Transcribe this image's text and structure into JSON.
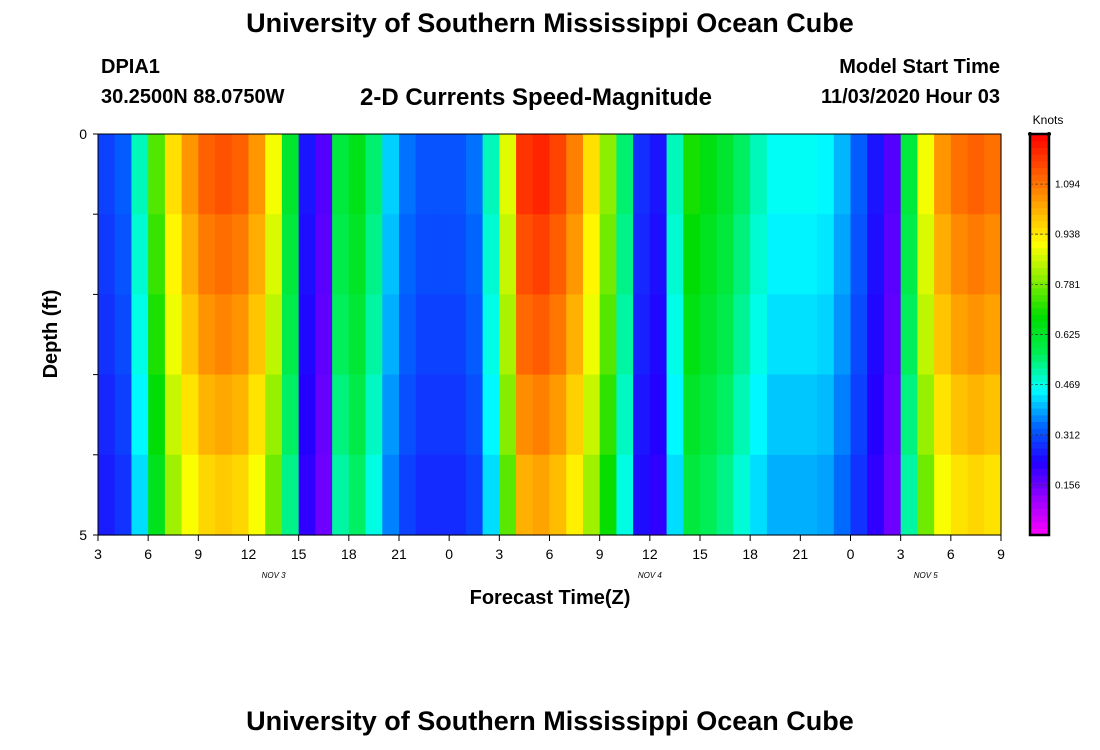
{
  "header": {
    "title": "University of Southern Mississippi Ocean Cube",
    "station_id": "DPIA1",
    "coords": "30.2500N 88.0750W",
    "chart_title": "2-D Currents Speed-Magnitude",
    "model_label": "Model Start Time",
    "model_time": "11/03/2020 Hour 03"
  },
  "footer": {
    "title": "University of Southern Mississippi Ocean Cube"
  },
  "colors": {
    "scale": [
      "#ff00ff",
      "#9900ff",
      "#2200ff",
      "#0066ff",
      "#00ffff",
      "#00ee55",
      "#00dd00",
      "#88ee00",
      "#ffff00",
      "#ffaa00",
      "#ff5500",
      "#ff0000"
    ]
  },
  "chart_data": {
    "type": "heatmap",
    "title": "2-D Currents Speed-Magnitude",
    "xlabel": "Forecast Time(Z)",
    "ylabel": "Depth (ft)",
    "ylim": [
      0,
      5
    ],
    "y_ticks": [
      "0",
      "5"
    ],
    "x_tick_labels": [
      "3",
      "6",
      "9",
      "12",
      "15",
      "18",
      "21",
      "0",
      "3",
      "6",
      "9",
      "12",
      "15",
      "18",
      "21",
      "0",
      "3",
      "6",
      "9"
    ],
    "date_labels": [
      {
        "label": "NOV 3",
        "hour_index": 10.5
      },
      {
        "label": "NOV 4",
        "hour_index": 33
      },
      {
        "label": "NOV 5",
        "hour_index": 49.5
      }
    ],
    "time_hours_total": 54,
    "depth_levels": 5,
    "colorbar": {
      "unit": "Knots",
      "min": 0.0,
      "max": 1.25,
      "tick_values": [
        0.156,
        0.312,
        0.469,
        0.625,
        0.781,
        0.938,
        1.094
      ],
      "tick_labels": [
        "0.156",
        "0.312",
        "0.469",
        "0.625",
        "0.781",
        "0.938",
        "1.094"
      ]
    },
    "speed_at_surface": [
      0.3,
      0.33,
      0.5,
      0.75,
      0.95,
      1.05,
      1.12,
      1.14,
      1.12,
      1.05,
      0.9,
      0.62,
      0.25,
      0.18,
      0.6,
      0.65,
      0.55,
      0.42,
      0.35,
      0.32,
      0.32,
      0.32,
      0.35,
      0.5,
      0.88,
      1.18,
      1.2,
      1.16,
      1.08,
      0.95,
      0.8,
      0.55,
      0.28,
      0.25,
      0.5,
      0.7,
      0.66,
      0.62,
      0.56,
      0.5,
      0.46,
      0.46,
      0.46,
      0.45,
      0.4,
      0.33,
      0.25,
      0.18,
      0.6,
      0.9,
      1.05,
      1.1,
      1.12,
      1.1
    ],
    "depth_factors": [
      1.0,
      0.97,
      0.94,
      0.9,
      0.86
    ]
  }
}
